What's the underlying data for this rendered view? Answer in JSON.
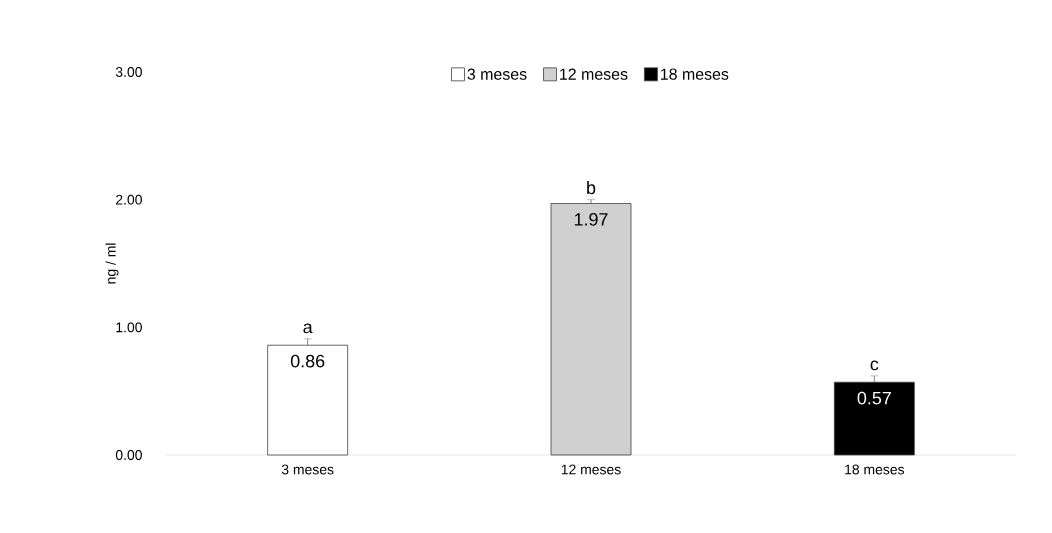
{
  "chart_data": {
    "type": "bar",
    "ylabel": "ng / ml",
    "categories": [
      "3 meses",
      "12 meses",
      "18 meses"
    ],
    "series": [
      {
        "name": "3 meses",
        "color": "#ffffff",
        "values": [
          0.86,
          null,
          null
        ],
        "errors": [
          0.05,
          null,
          null
        ]
      },
      {
        "name": "12 meses",
        "color": "#d0d0d0",
        "values": [
          null,
          1.97,
          null
        ],
        "errors": [
          null,
          0.03,
          null
        ]
      },
      {
        "name": "18 meses",
        "color": "#000000",
        "values": [
          null,
          null,
          0.57
        ],
        "errors": [
          null,
          null,
          0.05
        ]
      }
    ],
    "ylim": [
      0,
      3
    ],
    "yticks": [
      {
        "value": 0,
        "label": "0.00"
      },
      {
        "value": 1,
        "label": "1.00"
      },
      {
        "value": 2,
        "label": "2.00"
      },
      {
        "value": 3,
        "label": "3.00"
      }
    ],
    "data_labels": true,
    "legend": "top",
    "grid": false,
    "annotations": [
      {
        "text": "a",
        "x": "3 meses",
        "y": 0.91
      },
      {
        "text": "b",
        "x": "12 meses",
        "y": 2.0
      },
      {
        "text": "c",
        "x": "18 meses",
        "y": 0.62
      }
    ]
  }
}
